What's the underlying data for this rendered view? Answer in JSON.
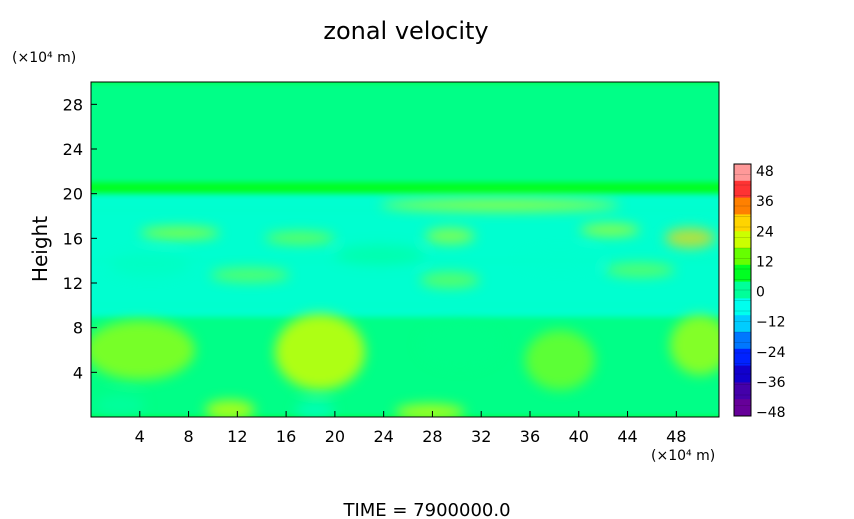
{
  "chart_data": {
    "type": "heatmap",
    "title": "zonal velocity",
    "ylabel": "Height",
    "y_unit": "(×10⁴ m)",
    "x_unit": "(×10⁴ m)",
    "xlim": [
      0,
      51.5
    ],
    "ylim": [
      0,
      30
    ],
    "x_ticks": [
      "4",
      "8",
      "12",
      "16",
      "20",
      "24",
      "28",
      "32",
      "36",
      "40",
      "44",
      "48"
    ],
    "y_ticks": [
      "4",
      "8",
      "12",
      "16",
      "20",
      "24",
      "28"
    ],
    "x_tick_values": [
      4,
      8,
      12,
      16,
      20,
      24,
      28,
      32,
      36,
      40,
      44,
      48
    ],
    "y_tick_values": [
      4,
      8,
      12,
      16,
      20,
      24,
      28
    ],
    "colorbar": {
      "labels": [
        "48",
        "36",
        "24",
        "12",
        "0",
        "−12",
        "−24",
        "−36",
        "−48"
      ],
      "range": [
        -48,
        48
      ],
      "colors": [
        "#ff9999",
        "#ff3333",
        "#ff8000",
        "#ffd400",
        "#ccff00",
        "#66ff00",
        "#00ff22",
        "#00ff99",
        "#00ffee",
        "#00ccff",
        "#0077ff",
        "#0022ff",
        "#1100cc",
        "#4400aa",
        "#660099"
      ]
    },
    "field_regions": [
      {
        "y_range": [
          21,
          30
        ],
        "value": 0,
        "note": "uniform"
      },
      {
        "y_range": [
          18.5,
          20
        ],
        "value": -8
      },
      {
        "y_range": [
          14,
          18.5
        ],
        "value": -4
      },
      {
        "y_range": [
          10,
          14
        ],
        "value": -5
      },
      {
        "y_range": [
          9,
          10
        ],
        "value": -9
      },
      {
        "y_range": [
          0,
          9
        ],
        "value": 3
      }
    ],
    "time_label": "TIME  =  7900000.0"
  }
}
